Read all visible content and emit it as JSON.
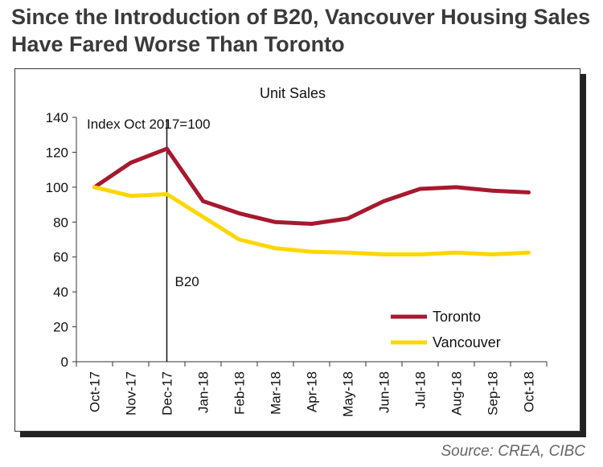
{
  "headline": "Since the Introduction of B20, Vancouver Housing Sales Have Fared Worse Than Toronto",
  "source": "Source: CREA, CIBC",
  "colors": {
    "toronto": "#a6192e",
    "vancouver": "#ffd600"
  },
  "chart_data": {
    "type": "line",
    "title": "Unit Sales",
    "annotation": "Index Oct 2017=100",
    "event_marker": {
      "label": "B20",
      "at": "Dec-17"
    },
    "categories": [
      "Oct-17",
      "Nov-17",
      "Dec-17",
      "Jan-18",
      "Feb-18",
      "Mar-18",
      "Apr-18",
      "May-18",
      "Jun-18",
      "Jul-18",
      "Aug-18",
      "Sep-18",
      "Oct-18"
    ],
    "ylim": [
      0,
      140
    ],
    "yticks": [
      0,
      20,
      40,
      60,
      80,
      100,
      120,
      140
    ],
    "legend_position": "bottom-right",
    "grid": false,
    "series": [
      {
        "name": "Toronto",
        "color": "#a6192e",
        "values": [
          100,
          114,
          122,
          92,
          85,
          80,
          79,
          82,
          92,
          99,
          100,
          98,
          97
        ]
      },
      {
        "name": "Vancouver",
        "color": "#ffd600",
        "values": [
          100,
          95,
          96,
          83,
          70,
          65,
          63,
          62.5,
          61.5,
          61.5,
          62.5,
          61.5,
          62.5
        ]
      }
    ]
  }
}
